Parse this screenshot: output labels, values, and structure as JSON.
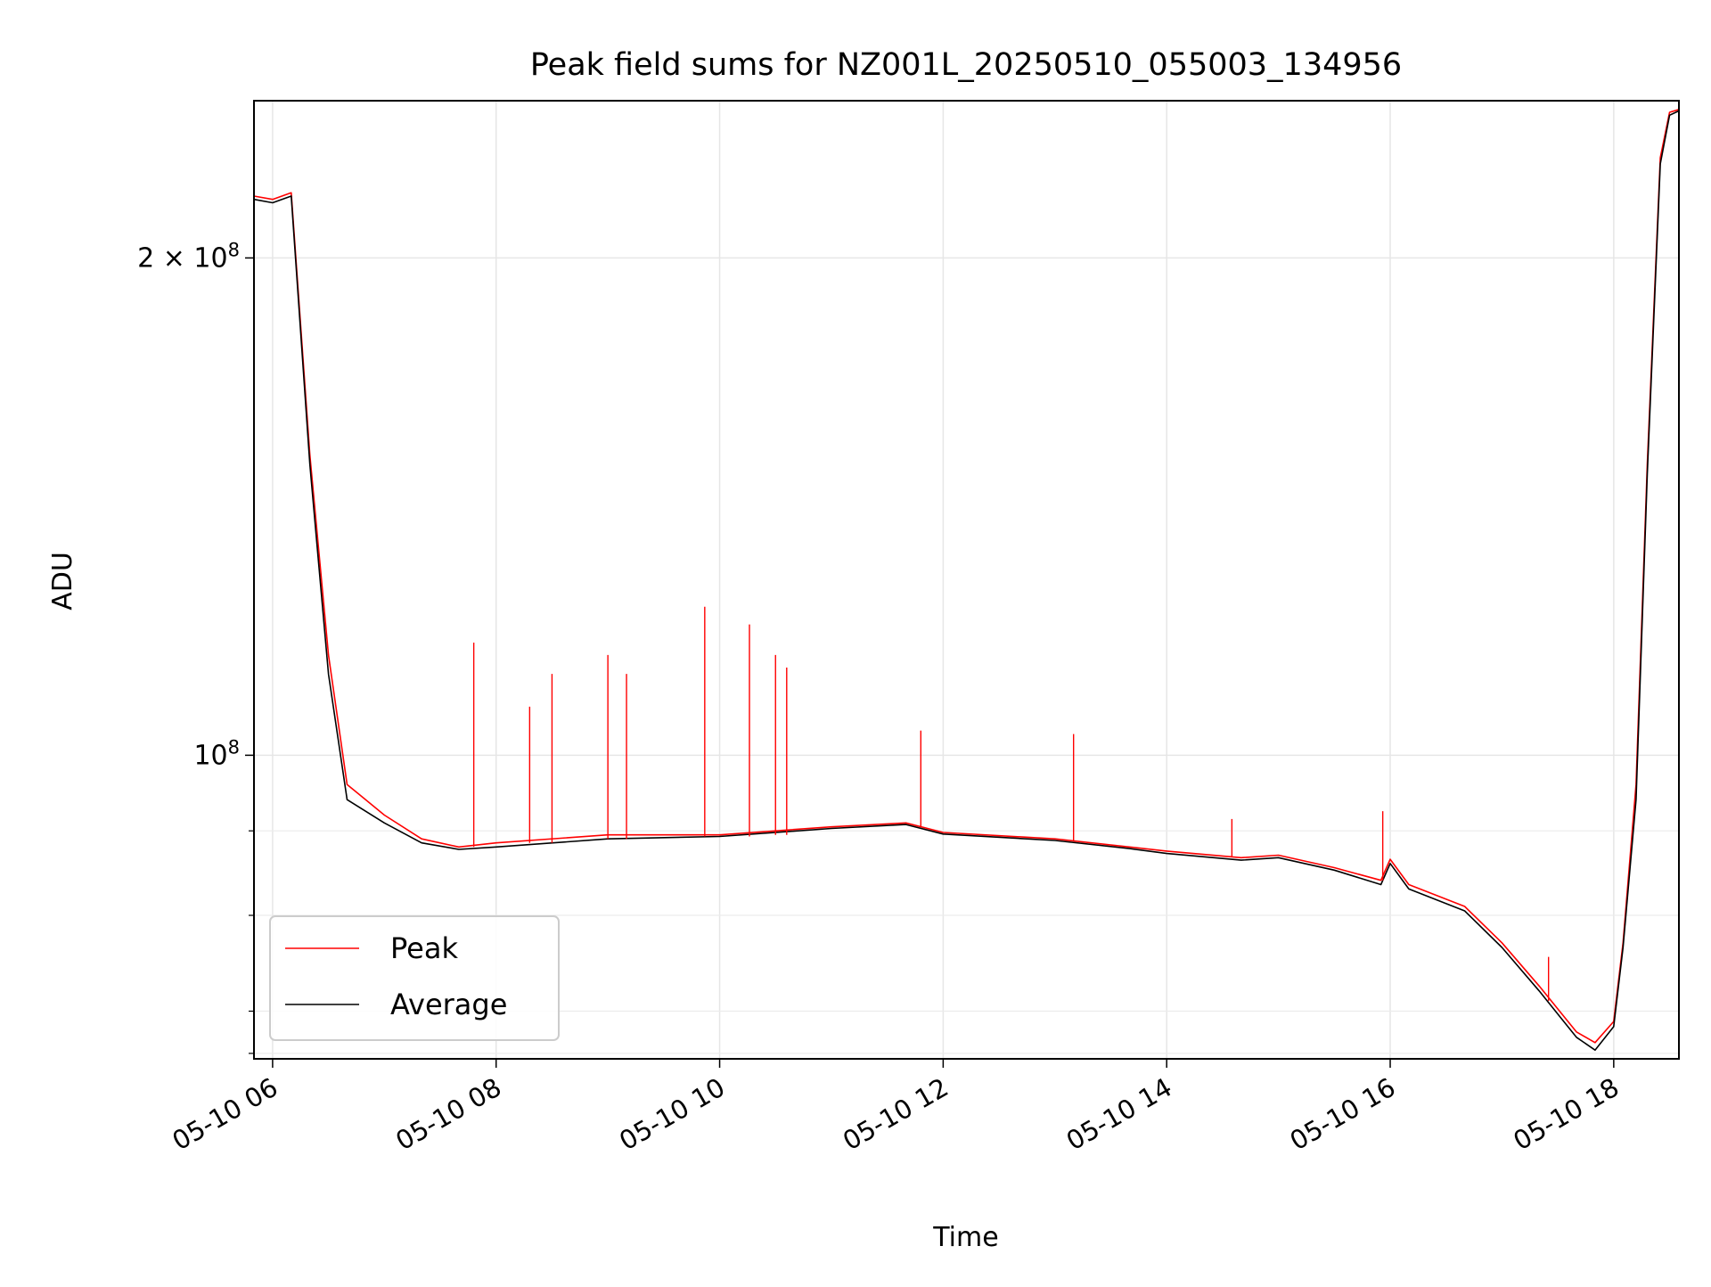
{
  "chart_data": {
    "type": "line",
    "title": "Peak field sums for NZ001L_20250510_055003_134956",
    "xlabel": "Time",
    "ylabel": "ADU",
    "y_scale": "log",
    "grid": true,
    "legend_position": "lower-left",
    "xlim": [
      "2025-05-10 05:50",
      "2025-05-10 18:35"
    ],
    "ylim": [
      65500000,
      249000000
    ],
    "x_ticks": [
      {
        "value": "2025-05-10 06:00",
        "label": "05-10 06"
      },
      {
        "value": "2025-05-10 08:00",
        "label": "05-10 08"
      },
      {
        "value": "2025-05-10 10:00",
        "label": "05-10 10"
      },
      {
        "value": "2025-05-10 12:00",
        "label": "05-10 12"
      },
      {
        "value": "2025-05-10 14:00",
        "label": "05-10 14"
      },
      {
        "value": "2025-05-10 16:00",
        "label": "05-10 16"
      },
      {
        "value": "2025-05-10 18:00",
        "label": "05-10 18"
      }
    ],
    "y_major_ticks": [
      {
        "value": 100000000,
        "base": "10",
        "exp": "8",
        "coef": ""
      },
      {
        "value": 200000000,
        "base": "10",
        "exp": "8",
        "coef": "2 × "
      }
    ],
    "y_minor_ticks": [
      66000000,
      70000000,
      80000000,
      90000000
    ],
    "series": [
      {
        "name": "Peak",
        "color": "#ff0000",
        "x": [
          "2025-05-10 05:50",
          "2025-05-10 06:00",
          "2025-05-10 06:10",
          "2025-05-10 06:20",
          "2025-05-10 06:30",
          "2025-05-10 06:40",
          "2025-05-10 07:00",
          "2025-05-10 07:20",
          "2025-05-10 07:40",
          "2025-05-10 08:00",
          "2025-05-10 09:00",
          "2025-05-10 10:00",
          "2025-05-10 11:00",
          "2025-05-10 11:40",
          "2025-05-10 12:00",
          "2025-05-10 13:00",
          "2025-05-10 13:40",
          "2025-05-10 14:00",
          "2025-05-10 14:40",
          "2025-05-10 15:00",
          "2025-05-10 15:30",
          "2025-05-10 15:55",
          "2025-05-10 16:00",
          "2025-05-10 16:10",
          "2025-05-10 16:40",
          "2025-05-10 17:00",
          "2025-05-10 17:20",
          "2025-05-10 17:40",
          "2025-05-10 17:50",
          "2025-05-10 18:00",
          "2025-05-10 18:05",
          "2025-05-10 18:12",
          "2025-05-10 18:18",
          "2025-05-10 18:25",
          "2025-05-10 18:30",
          "2025-05-10 18:35"
        ],
        "y": [
          218000000,
          217000000,
          219000000,
          152000000,
          115000000,
          96000000,
          92000000,
          89000000,
          88000000,
          88500000,
          89500000,
          89500000,
          90500000,
          91000000,
          89800000,
          89000000,
          88000000,
          87500000,
          86700000,
          87000000,
          85500000,
          84000000,
          86500000,
          83500000,
          81000000,
          77000000,
          72500000,
          68000000,
          67000000,
          69000000,
          77000000,
          96000000,
          150000000,
          230000000,
          245000000,
          246000000
        ]
      },
      {
        "name": "Average",
        "color": "#000000",
        "x": [
          "2025-05-10 05:50",
          "2025-05-10 06:00",
          "2025-05-10 06:10",
          "2025-05-10 06:20",
          "2025-05-10 06:30",
          "2025-05-10 06:40",
          "2025-05-10 07:00",
          "2025-05-10 07:20",
          "2025-05-10 07:40",
          "2025-05-10 08:00",
          "2025-05-10 09:00",
          "2025-05-10 10:00",
          "2025-05-10 11:00",
          "2025-05-10 11:40",
          "2025-05-10 12:00",
          "2025-05-10 13:00",
          "2025-05-10 13:40",
          "2025-05-10 14:00",
          "2025-05-10 14:40",
          "2025-05-10 15:00",
          "2025-05-10 15:30",
          "2025-05-10 15:55",
          "2025-05-10 16:00",
          "2025-05-10 16:10",
          "2025-05-10 16:40",
          "2025-05-10 17:00",
          "2025-05-10 17:20",
          "2025-05-10 17:40",
          "2025-05-10 17:50",
          "2025-05-10 18:00",
          "2025-05-10 18:05",
          "2025-05-10 18:12",
          "2025-05-10 18:18",
          "2025-05-10 18:25",
          "2025-05-10 18:30",
          "2025-05-10 18:35"
        ],
        "y": [
          217000000,
          216000000,
          218000000,
          150000000,
          112000000,
          94000000,
          91000000,
          88500000,
          87700000,
          88000000,
          89000000,
          89300000,
          90300000,
          90800000,
          89600000,
          88800000,
          87800000,
          87200000,
          86400000,
          86700000,
          85200000,
          83500000,
          86000000,
          83000000,
          80500000,
          76500000,
          72000000,
          67500000,
          66300000,
          68500000,
          76500000,
          94000000,
          148000000,
          228000000,
          244000000,
          245500000
        ]
      }
    ],
    "spikes": [
      {
        "series": "Peak",
        "x": "2025-05-10 07:48",
        "y": 117000000,
        "base": 88000000
      },
      {
        "series": "Peak",
        "x": "2025-05-10 08:18",
        "y": 107000000,
        "base": 88500000
      },
      {
        "series": "Peak",
        "x": "2025-05-10 08:30",
        "y": 112000000,
        "base": 88500000
      },
      {
        "series": "Peak",
        "x": "2025-05-10 09:00",
        "y": 115000000,
        "base": 89000000
      },
      {
        "series": "Peak",
        "x": "2025-05-10 09:10",
        "y": 112000000,
        "base": 89000000
      },
      {
        "series": "Peak",
        "x": "2025-05-10 09:52",
        "y": 123000000,
        "base": 89300000
      },
      {
        "series": "Peak",
        "x": "2025-05-10 10:16",
        "y": 120000000,
        "base": 89300000
      },
      {
        "series": "Peak",
        "x": "2025-05-10 10:30",
        "y": 115000000,
        "base": 89500000
      },
      {
        "series": "Peak",
        "x": "2025-05-10 10:36",
        "y": 113000000,
        "base": 89500000
      },
      {
        "series": "Peak",
        "x": "2025-05-10 11:48",
        "y": 103500000,
        "base": 90500000
      },
      {
        "series": "Peak",
        "x": "2025-05-10 13:10",
        "y": 103000000,
        "base": 88800000
      },
      {
        "series": "Peak",
        "x": "2025-05-10 14:35",
        "y": 91500000,
        "base": 86800000
      },
      {
        "series": "Peak",
        "x": "2025-05-10 15:56",
        "y": 92500000,
        "base": 84000000
      },
      {
        "series": "Peak",
        "x": "2025-05-10 17:25",
        "y": 75500000,
        "base": 71000000
      }
    ]
  }
}
